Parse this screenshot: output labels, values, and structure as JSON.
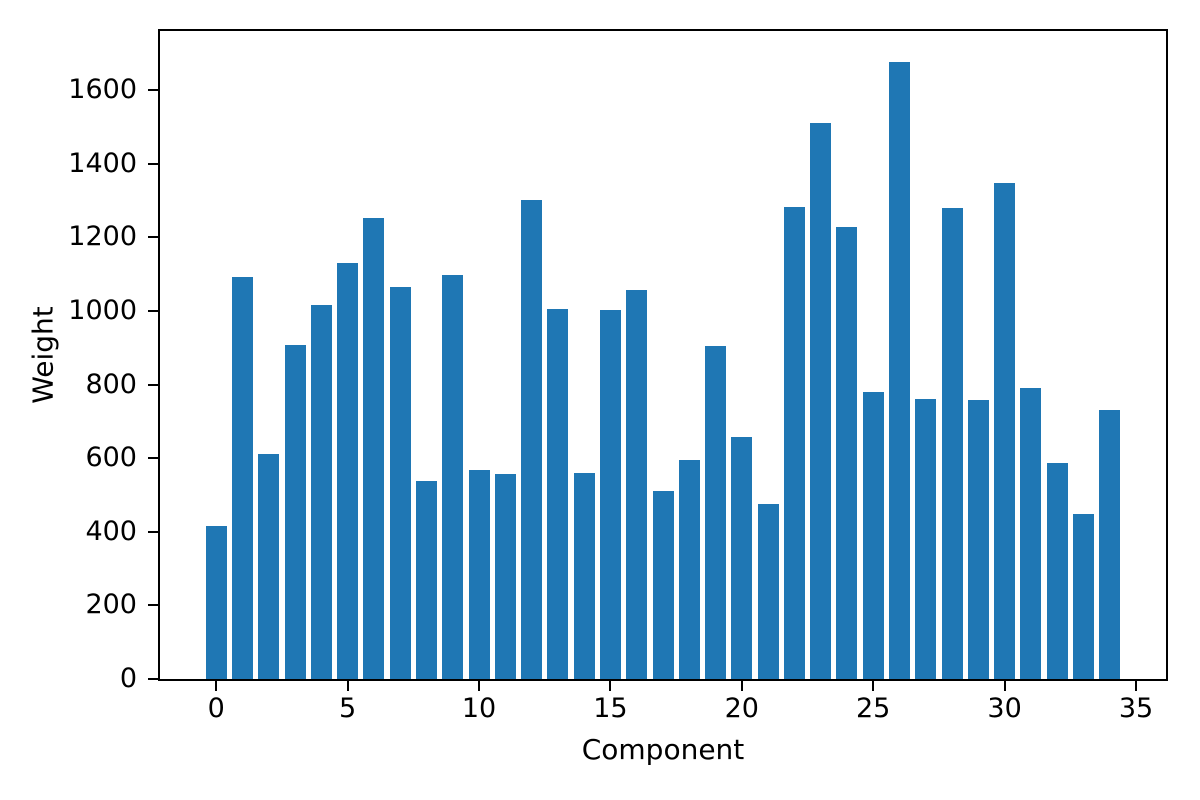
{
  "figure": {
    "background": "#ffffff"
  },
  "chart_data": {
    "type": "bar",
    "title": "",
    "xlabel": "Component",
    "ylabel": "Weight",
    "x": [
      0,
      1,
      2,
      3,
      4,
      5,
      6,
      7,
      8,
      9,
      10,
      11,
      12,
      13,
      14,
      15,
      16,
      17,
      18,
      19,
      20,
      21,
      22,
      23,
      24,
      25,
      26,
      27,
      28,
      29,
      30,
      31,
      32,
      33,
      34
    ],
    "values": [
      415,
      1092,
      612,
      908,
      1016,
      1131,
      1253,
      1066,
      538,
      1098,
      567,
      556,
      1300,
      1004,
      559,
      1001,
      1056,
      512,
      595,
      905,
      657,
      475,
      1283,
      1511,
      1228,
      779,
      1676,
      760,
      1280,
      759,
      1346,
      790,
      588,
      447,
      732
    ],
    "bar_color": "#1f77b4",
    "axis_color": "#000000",
    "xticks": [
      0,
      5,
      10,
      15,
      20,
      25,
      30,
      35
    ],
    "yticks": [
      0,
      200,
      400,
      600,
      800,
      1000,
      1200,
      1400,
      1600
    ],
    "xlim": [
      -2.14,
      36.14
    ],
    "ylim": [
      0,
      1760
    ],
    "grid": false,
    "legend": null
  }
}
